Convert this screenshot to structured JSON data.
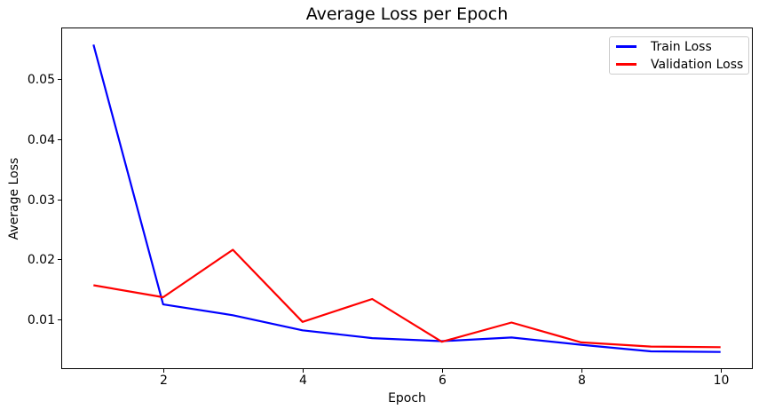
{
  "chart_data": {
    "type": "line",
    "title": "Average Loss per Epoch",
    "xlabel": "Epoch",
    "ylabel": "Average Loss",
    "x": [
      1,
      2,
      3,
      4,
      5,
      6,
      7,
      8,
      9,
      10
    ],
    "series": [
      {
        "name": "Train Loss",
        "color": "#0000ff",
        "values": [
          0.0557,
          0.0125,
          0.0107,
          0.0082,
          0.0069,
          0.0064,
          0.007,
          0.0058,
          0.0047,
          0.0046
        ]
      },
      {
        "name": "Validation Loss",
        "color": "#ff0000",
        "values": [
          0.0157,
          0.0137,
          0.0216,
          0.0096,
          0.0134,
          0.0063,
          0.0095,
          0.0062,
          0.0055,
          0.0054
        ]
      }
    ],
    "xticks": [
      2,
      4,
      6,
      8,
      10
    ],
    "xtick_labels": [
      "2",
      "4",
      "6",
      "8",
      "10"
    ],
    "yticks": [
      0.01,
      0.02,
      0.03,
      0.04,
      0.05
    ],
    "ytick_labels": [
      "0.01",
      "0.02",
      "0.03",
      "0.04",
      "0.05"
    ],
    "xlim": [
      0.55,
      10.45
    ],
    "ylim": [
      0.0019,
      0.0584
    ],
    "grid": false,
    "legend_position": "upper right",
    "background": "#ffffff",
    "axis_color": "#000000",
    "legend_border_color": "#cccccc"
  }
}
